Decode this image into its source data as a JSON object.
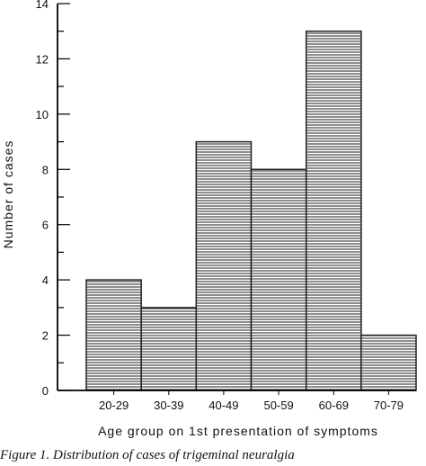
{
  "chart_data": {
    "type": "bar",
    "categories": [
      "20-29",
      "30-39",
      "40-49",
      "50-59",
      "60-69",
      "70-79"
    ],
    "values": [
      4,
      3,
      9,
      8,
      13,
      2
    ],
    "xlabel": "Age group on 1st presentation of symptoms",
    "ylabel": "Number of cases",
    "ylim": [
      0,
      14
    ],
    "yticks": [
      0,
      2,
      4,
      6,
      8,
      10,
      12,
      14
    ],
    "grid": false,
    "bar_fill": "hatched-horizontal",
    "colors": {
      "bar_line": "#222222",
      "axis": "#000000",
      "background": "#ffffff"
    }
  },
  "caption": "Figure 1. Distribution of cases of trigeminal neuralgia"
}
